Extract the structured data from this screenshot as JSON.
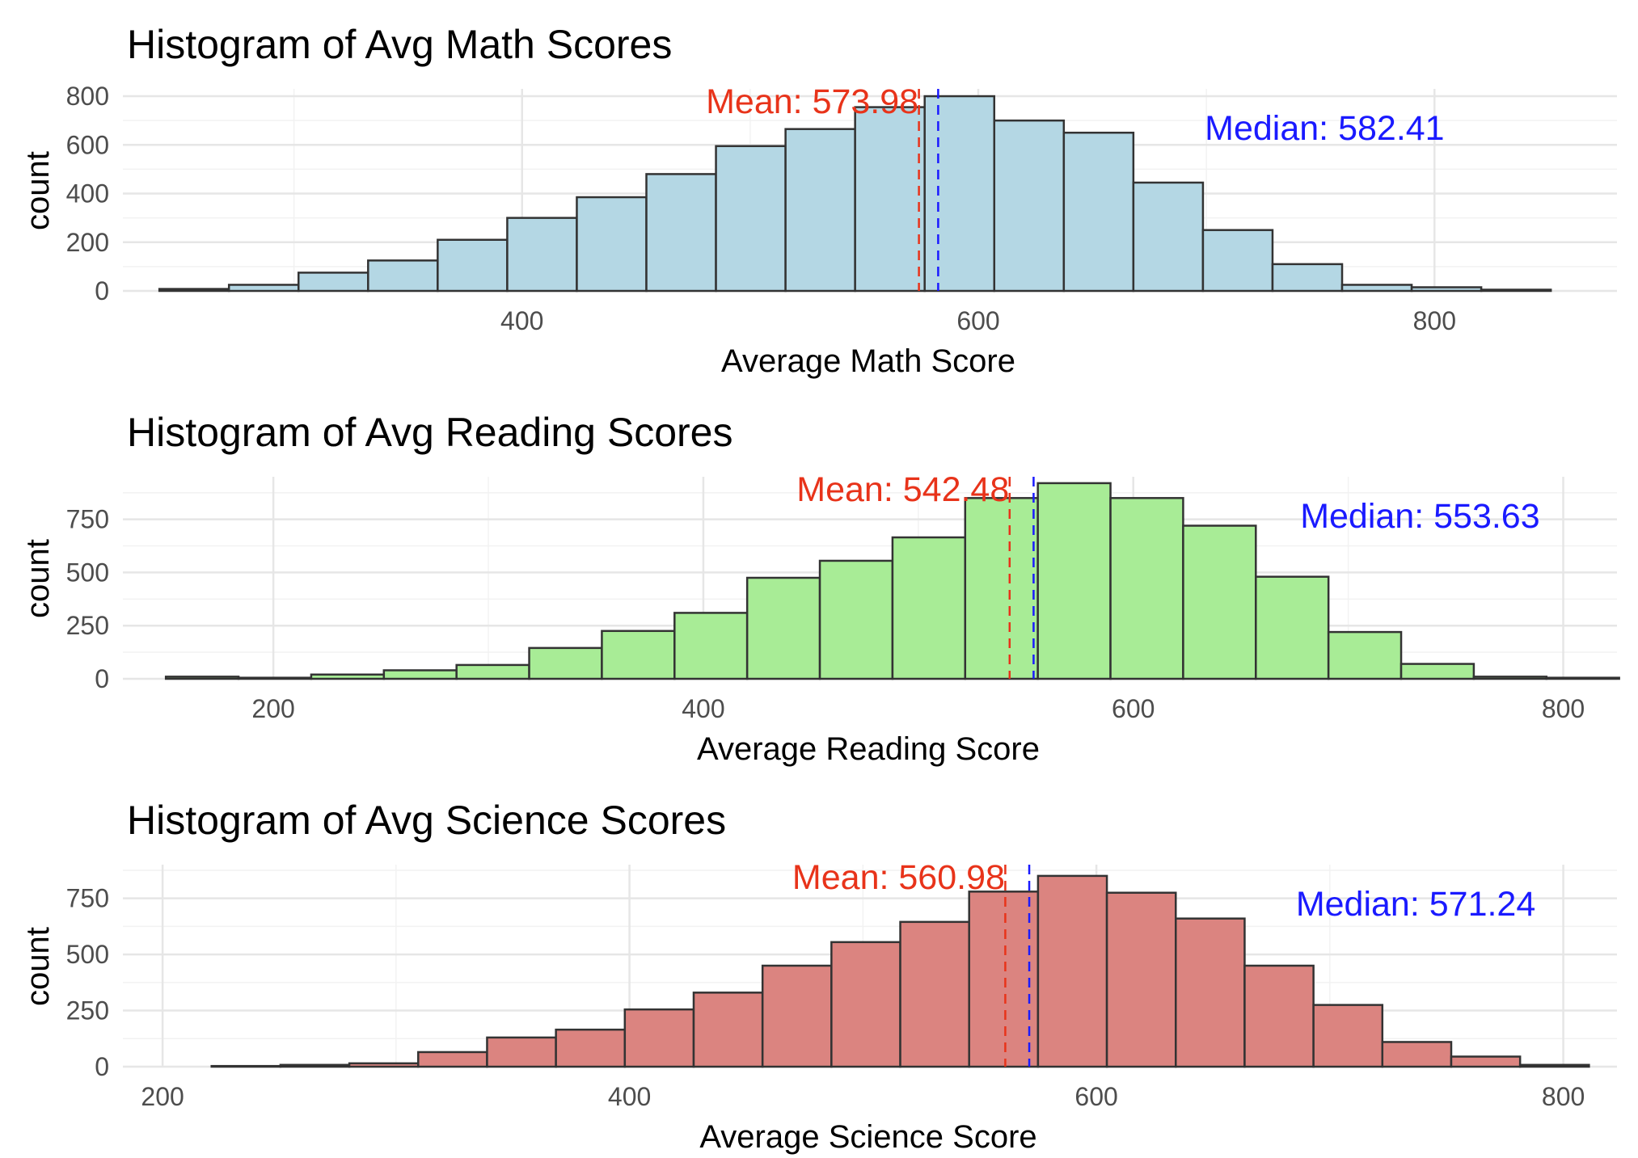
{
  "chart_data": [
    {
      "type": "bar",
      "title": "Histogram of Avg Math Scores",
      "xlabel": "Average Math Score",
      "ylabel": "count",
      "fill": "#b4d7e4",
      "bin_width": 30.5,
      "bin_start": 241,
      "values": [
        8,
        25,
        75,
        125,
        210,
        300,
        385,
        480,
        595,
        665,
        755,
        800,
        700,
        650,
        445,
        250,
        110,
        25,
        15,
        5
      ],
      "xlim": [
        225,
        880
      ],
      "ylim": [
        0,
        830
      ],
      "x_ticks": [
        400,
        600,
        800
      ],
      "y_ticks": [
        0,
        200,
        400,
        600,
        800
      ],
      "mean": 573.98,
      "median": 582.41,
      "mean_label": "Mean: 573.98",
      "median_label": "Median: 582.41",
      "mean_color": "#e8331a",
      "median_color": "#1a1aff",
      "grid": true
    },
    {
      "type": "bar",
      "title": "Histogram of Avg Reading Scores",
      "xlabel": "Average Reading Score",
      "ylabel": "count",
      "fill": "#a8ec96",
      "bin_width": 33.8,
      "bin_start": 150,
      "values": [
        10,
        5,
        20,
        40,
        65,
        145,
        225,
        310,
        475,
        555,
        665,
        850,
        920,
        850,
        720,
        480,
        220,
        70,
        10,
        5
      ],
      "xlim": [
        130,
        825
      ],
      "ylim": [
        0,
        950
      ],
      "x_ticks": [
        200,
        400,
        600,
        800
      ],
      "y_ticks": [
        0,
        250,
        500,
        750
      ],
      "mean": 542.48,
      "median": 553.63,
      "mean_label": "Mean: 542.48",
      "median_label": "Median: 553.63",
      "mean_color": "#e8331a",
      "median_color": "#1a1aff",
      "grid": true
    },
    {
      "type": "bar",
      "title": "Histogram of Avg Science Scores",
      "xlabel": "Average Science Score",
      "ylabel": "count",
      "fill": "#db8480",
      "bin_width": 29.5,
      "bin_start": 221,
      "values": [
        3,
        8,
        15,
        65,
        130,
        165,
        255,
        330,
        450,
        555,
        645,
        780,
        850,
        775,
        660,
        450,
        275,
        110,
        45,
        8
      ],
      "xlim": [
        183,
        823
      ],
      "ylim": [
        0,
        900
      ],
      "x_ticks": [
        200,
        400,
        600,
        800
      ],
      "y_ticks": [
        0,
        250,
        500,
        750
      ],
      "mean": 560.98,
      "median": 571.24,
      "mean_label": "Mean: 560.98",
      "median_label": "Median: 571.24",
      "mean_color": "#e8331a",
      "median_color": "#1a1aff",
      "grid": true
    }
  ]
}
